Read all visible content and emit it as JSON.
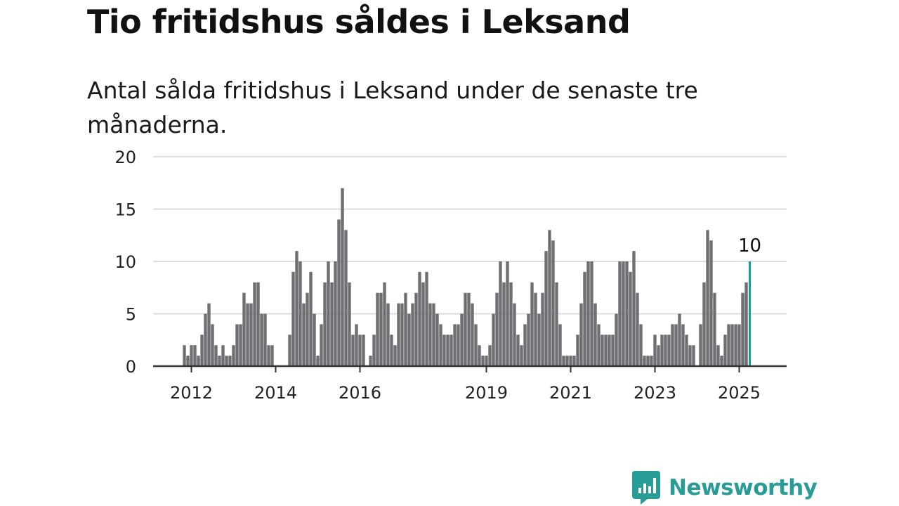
{
  "header": {
    "title": "Tio fritidshus såldes i Leksand",
    "subtitle": "Antal sålda fritidshus i Leksand under de senaste tre månaderna."
  },
  "brand": {
    "name": "Newsworthy",
    "icon": "newsworthy-logo-icon"
  },
  "colors": {
    "bar": "#6f6f73",
    "highlight": "#169d98",
    "grid": "#dddddd",
    "axis": "#333333",
    "brand": "#2a9c96"
  },
  "chart_data": {
    "type": "bar",
    "title": "Tio fritidshus såldes i Leksand",
    "subtitle": "Antal sålda fritidshus i Leksand under de senaste tre månaderna.",
    "xlabel": "",
    "ylabel": "",
    "ylim": [
      0,
      20
    ],
    "yticks": [
      0,
      5,
      10,
      15,
      20
    ],
    "xticks": [
      {
        "label": "2012",
        "date": "2012-01"
      },
      {
        "label": "2014",
        "date": "2014-01"
      },
      {
        "label": "2016",
        "date": "2016-01"
      },
      {
        "label": "2019",
        "date": "2019-01"
      },
      {
        "label": "2021",
        "date": "2021-01"
      },
      {
        "label": "2023",
        "date": "2023-01"
      },
      {
        "label": "2025",
        "date": "2025-01"
      }
    ],
    "grid": true,
    "legend": "none",
    "x_start": "2011-11",
    "frequency": "monthly",
    "values": [
      2,
      1,
      2,
      2,
      1,
      3,
      5,
      6,
      4,
      2,
      1,
      2,
      1,
      1,
      2,
      4,
      4,
      7,
      6,
      6,
      8,
      8,
      5,
      5,
      2,
      2,
      0,
      0,
      0,
      0,
      3,
      9,
      11,
      10,
      6,
      7,
      9,
      5,
      1,
      4,
      8,
      10,
      8,
      10,
      14,
      17,
      13,
      8,
      3,
      4,
      3,
      3,
      0,
      1,
      3,
      7,
      7,
      8,
      6,
      3,
      2,
      6,
      6,
      7,
      5,
      6,
      7,
      9,
      8,
      9,
      6,
      6,
      5,
      4,
      3,
      3,
      3,
      4,
      4,
      5,
      7,
      7,
      6,
      4,
      2,
      1,
      1,
      2,
      5,
      7,
      10,
      8,
      10,
      8,
      6,
      3,
      2,
      4,
      5,
      8,
      7,
      5,
      7,
      11,
      13,
      12,
      8,
      4,
      1,
      1,
      1,
      1,
      3,
      6,
      9,
      10,
      10,
      6,
      4,
      3,
      3,
      3,
      3,
      5,
      10,
      10,
      10,
      9,
      11,
      7,
      4,
      1,
      1,
      1,
      3,
      2,
      3,
      3,
      3,
      4,
      4,
      5,
      4,
      3,
      2,
      2,
      0,
      4,
      8,
      13,
      12,
      7,
      2,
      1,
      3,
      4,
      4,
      4,
      4,
      7,
      8,
      10
    ],
    "highlight_last": true,
    "annotations": [
      {
        "text": "10",
        "target": "last_bar"
      }
    ]
  }
}
